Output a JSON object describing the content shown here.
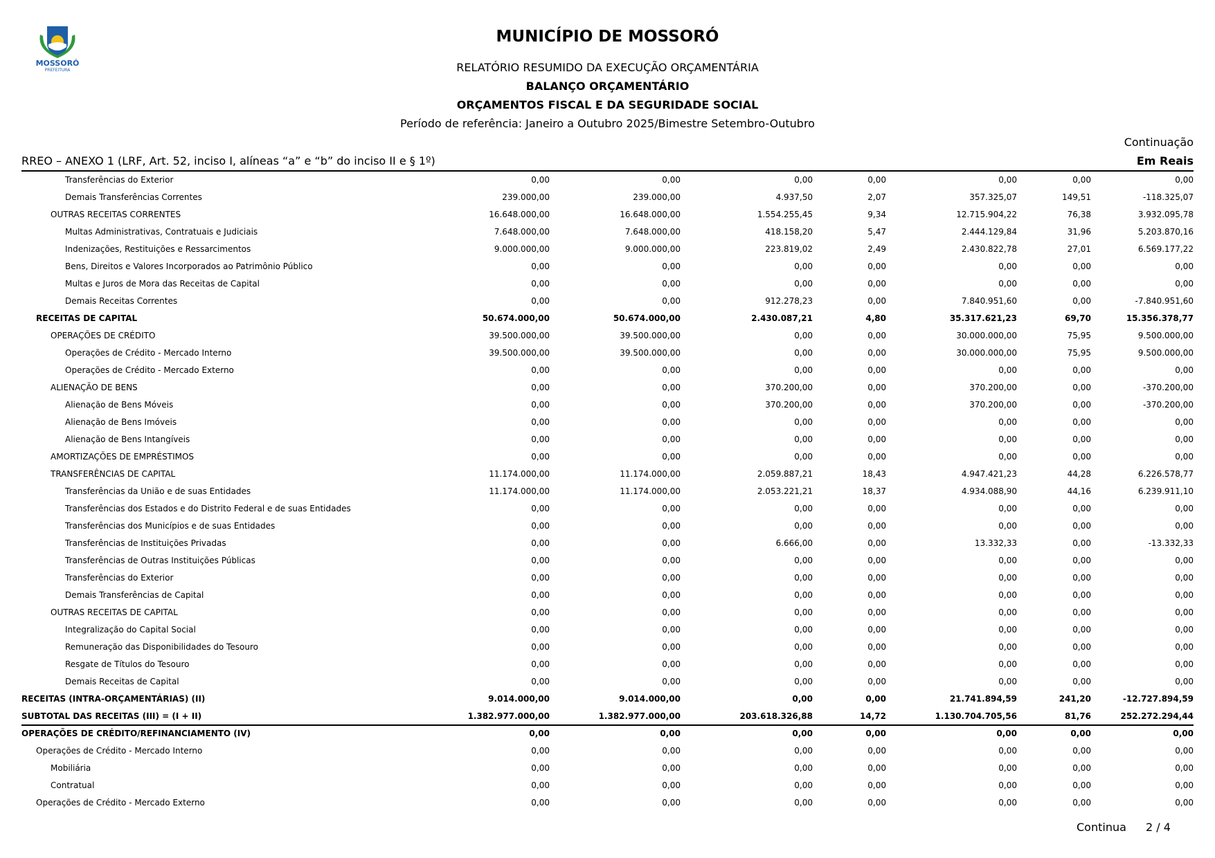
{
  "header": {
    "logo_text": "MOSSORÓ",
    "logo_subtext": "PREFEITURA",
    "title": "MUNICÍPIO DE MOSSORÓ",
    "line1": "RELATÓRIO RESUMIDO DA EXECUÇÃO ORÇAMENTÁRIA",
    "line2": "BALANÇO ORÇAMENTÁRIO",
    "line3": "ORÇAMENTOS FISCAL E DA SEGURIDADE SOCIAL",
    "period": "Período de referência: Janeiro a Outubro 2025/Bimestre Setembro-Outubro",
    "continuation": "Continuação",
    "annex": "RREO – ANEXO 1 (LRF, Art. 52, inciso I, alíneas “a” e “b” do inciso II e § 1º)",
    "unit": "Em Reais"
  },
  "colors": {
    "logo_blue": "#1f5fa8",
    "logo_green": "#2e9a3c",
    "logo_yellow": "#f2c318"
  },
  "rows": [
    {
      "label": "Transferências do Exterior",
      "level": 3,
      "bold": false,
      "values": [
        "0,00",
        "0,00",
        "0,00",
        "0,00",
        "0,00",
        "0,00",
        "0,00"
      ]
    },
    {
      "label": "Demais Transferências Correntes",
      "level": 3,
      "bold": false,
      "values": [
        "239.000,00",
        "239.000,00",
        "4.937,50",
        "2,07",
        "357.325,07",
        "149,51",
        "-118.325,07"
      ]
    },
    {
      "label": "OUTRAS RECEITAS CORRENTES",
      "level": 2,
      "bold": false,
      "values": [
        "16.648.000,00",
        "16.648.000,00",
        "1.554.255,45",
        "9,34",
        "12.715.904,22",
        "76,38",
        "3.932.095,78"
      ]
    },
    {
      "label": "Multas Administrativas, Contratuais e Judiciais",
      "level": 3,
      "bold": false,
      "values": [
        "7.648.000,00",
        "7.648.000,00",
        "418.158,20",
        "5,47",
        "2.444.129,84",
        "31,96",
        "5.203.870,16"
      ]
    },
    {
      "label": "Indenizações, Restituições e Ressarcimentos",
      "level": 3,
      "bold": false,
      "values": [
        "9.000.000,00",
        "9.000.000,00",
        "223.819,02",
        "2,49",
        "2.430.822,78",
        "27,01",
        "6.569.177,22"
      ]
    },
    {
      "label": "Bens, Direitos e Valores Incorporados ao Patrimônio Público",
      "level": 3,
      "bold": false,
      "values": [
        "0,00",
        "0,00",
        "0,00",
        "0,00",
        "0,00",
        "0,00",
        "0,00"
      ]
    },
    {
      "label": "Multas e Juros de Mora das Receitas de Capital",
      "level": 3,
      "bold": false,
      "values": [
        "0,00",
        "0,00",
        "0,00",
        "0,00",
        "0,00",
        "0,00",
        "0,00"
      ]
    },
    {
      "label": "Demais Receitas Correntes",
      "level": 3,
      "bold": false,
      "values": [
        "0,00",
        "0,00",
        "912.278,23",
        "0,00",
        "7.840.951,60",
        "0,00",
        "-7.840.951,60"
      ]
    },
    {
      "label": "RECEITAS DE CAPITAL",
      "level": 1,
      "bold": true,
      "values": [
        "50.674.000,00",
        "50.674.000,00",
        "2.430.087,21",
        "4,80",
        "35.317.621,23",
        "69,70",
        "15.356.378,77"
      ]
    },
    {
      "label": "OPERAÇÕES DE CRÉDITO",
      "level": 2,
      "bold": false,
      "values": [
        "39.500.000,00",
        "39.500.000,00",
        "0,00",
        "0,00",
        "30.000.000,00",
        "75,95",
        "9.500.000,00"
      ]
    },
    {
      "label": "Operações de Crédito - Mercado Interno",
      "level": 3,
      "bold": false,
      "values": [
        "39.500.000,00",
        "39.500.000,00",
        "0,00",
        "0,00",
        "30.000.000,00",
        "75,95",
        "9.500.000,00"
      ]
    },
    {
      "label": "Operações de Crédito - Mercado Externo",
      "level": 3,
      "bold": false,
      "values": [
        "0,00",
        "0,00",
        "0,00",
        "0,00",
        "0,00",
        "0,00",
        "0,00"
      ]
    },
    {
      "label": "ALIENAÇÃO DE BENS",
      "level": 2,
      "bold": false,
      "values": [
        "0,00",
        "0,00",
        "370.200,00",
        "0,00",
        "370.200,00",
        "0,00",
        "-370.200,00"
      ]
    },
    {
      "label": "Alienação de Bens Móveis",
      "level": 3,
      "bold": false,
      "values": [
        "0,00",
        "0,00",
        "370.200,00",
        "0,00",
        "370.200,00",
        "0,00",
        "-370.200,00"
      ]
    },
    {
      "label": "Alienação de Bens Imóveis",
      "level": 3,
      "bold": false,
      "values": [
        "0,00",
        "0,00",
        "0,00",
        "0,00",
        "0,00",
        "0,00",
        "0,00"
      ]
    },
    {
      "label": "Alienação de Bens Intangíveis",
      "level": 3,
      "bold": false,
      "values": [
        "0,00",
        "0,00",
        "0,00",
        "0,00",
        "0,00",
        "0,00",
        "0,00"
      ]
    },
    {
      "label": "AMORTIZAÇÕES DE EMPRÉSTIMOS",
      "level": 2,
      "bold": false,
      "values": [
        "0,00",
        "0,00",
        "0,00",
        "0,00",
        "0,00",
        "0,00",
        "0,00"
      ]
    },
    {
      "label": "TRANSFERÊNCIAS DE CAPITAL",
      "level": 2,
      "bold": false,
      "values": [
        "11.174.000,00",
        "11.174.000,00",
        "2.059.887,21",
        "18,43",
        "4.947.421,23",
        "44,28",
        "6.226.578,77"
      ]
    },
    {
      "label": "Transferências da União e de suas Entidades",
      "level": 3,
      "bold": false,
      "values": [
        "11.174.000,00",
        "11.174.000,00",
        "2.053.221,21",
        "18,37",
        "4.934.088,90",
        "44,16",
        "6.239.911,10"
      ]
    },
    {
      "label": "Transferências dos Estados e do Distrito Federal e de suas Entidades",
      "level": 3,
      "bold": false,
      "values": [
        "0,00",
        "0,00",
        "0,00",
        "0,00",
        "0,00",
        "0,00",
        "0,00"
      ]
    },
    {
      "label": "Transferências dos Municípios e de suas Entidades",
      "level": 3,
      "bold": false,
      "values": [
        "0,00",
        "0,00",
        "0,00",
        "0,00",
        "0,00",
        "0,00",
        "0,00"
      ]
    },
    {
      "label": "Transferências de Instituições Privadas",
      "level": 3,
      "bold": false,
      "values": [
        "0,00",
        "0,00",
        "6.666,00",
        "0,00",
        "13.332,33",
        "0,00",
        "-13.332,33"
      ]
    },
    {
      "label": "Transferências de Outras Instituições Públicas",
      "level": 3,
      "bold": false,
      "values": [
        "0,00",
        "0,00",
        "0,00",
        "0,00",
        "0,00",
        "0,00",
        "0,00"
      ]
    },
    {
      "label": "Transferências do Exterior",
      "level": 3,
      "bold": false,
      "values": [
        "0,00",
        "0,00",
        "0,00",
        "0,00",
        "0,00",
        "0,00",
        "0,00"
      ]
    },
    {
      "label": "Demais Transferências de Capital",
      "level": 3,
      "bold": false,
      "values": [
        "0,00",
        "0,00",
        "0,00",
        "0,00",
        "0,00",
        "0,00",
        "0,00"
      ]
    },
    {
      "label": "OUTRAS RECEITAS DE CAPITAL",
      "level": 2,
      "bold": false,
      "values": [
        "0,00",
        "0,00",
        "0,00",
        "0,00",
        "0,00",
        "0,00",
        "0,00"
      ]
    },
    {
      "label": "Integralização do Capital Social",
      "level": 3,
      "bold": false,
      "values": [
        "0,00",
        "0,00",
        "0,00",
        "0,00",
        "0,00",
        "0,00",
        "0,00"
      ]
    },
    {
      "label": "Remuneração das Disponibilidades do Tesouro",
      "level": 3,
      "bold": false,
      "values": [
        "0,00",
        "0,00",
        "0,00",
        "0,00",
        "0,00",
        "0,00",
        "0,00"
      ]
    },
    {
      "label": "Resgate de Títulos do Tesouro",
      "level": 3,
      "bold": false,
      "values": [
        "0,00",
        "0,00",
        "0,00",
        "0,00",
        "0,00",
        "0,00",
        "0,00"
      ]
    },
    {
      "label": "Demais Receitas de Capital",
      "level": 3,
      "bold": false,
      "values": [
        "0,00",
        "0,00",
        "0,00",
        "0,00",
        "0,00",
        "0,00",
        "0,00"
      ]
    },
    {
      "label": "RECEITAS (INTRA-ORÇAMENTÁRIAS) (II)",
      "level": 0,
      "bold": true,
      "values": [
        "9.014.000,00",
        "9.014.000,00",
        "0,00",
        "0,00",
        "21.741.894,59",
        "241,20",
        "-12.727.894,59"
      ]
    },
    {
      "label": "SUBTOTAL DAS RECEITAS (III) = (I + II)",
      "level": 0,
      "bold": true,
      "line_below": true,
      "values": [
        "1.382.977.000,00",
        "1.382.977.000,00",
        "203.618.326,88",
        "14,72",
        "1.130.704.705,56",
        "81,76",
        "252.272.294,44"
      ]
    },
    {
      "label": "OPERAÇÕES DE CRÉDITO/REFINANCIAMENTO (IV)",
      "level": 0,
      "bold": true,
      "values": [
        "0,00",
        "0,00",
        "0,00",
        "0,00",
        "0,00",
        "0,00",
        "0,00"
      ]
    },
    {
      "label": "Operações de Crédito - Mercado Interno",
      "level": 1,
      "bold": false,
      "values": [
        "0,00",
        "0,00",
        "0,00",
        "0,00",
        "0,00",
        "0,00",
        "0,00"
      ]
    },
    {
      "label": "Mobiliária",
      "level": 2,
      "bold": false,
      "values": [
        "0,00",
        "0,00",
        "0,00",
        "0,00",
        "0,00",
        "0,00",
        "0,00"
      ]
    },
    {
      "label": "Contratual",
      "level": 2,
      "bold": false,
      "values": [
        "0,00",
        "0,00",
        "0,00",
        "0,00",
        "0,00",
        "0,00",
        "0,00"
      ]
    },
    {
      "label": "Operações de Crédito - Mercado Externo",
      "level": 1,
      "bold": false,
      "values": [
        "0,00",
        "0,00",
        "0,00",
        "0,00",
        "0,00",
        "0,00",
        "0,00"
      ]
    }
  ],
  "footer": {
    "continues": "Continua",
    "page": "2 / 4"
  }
}
